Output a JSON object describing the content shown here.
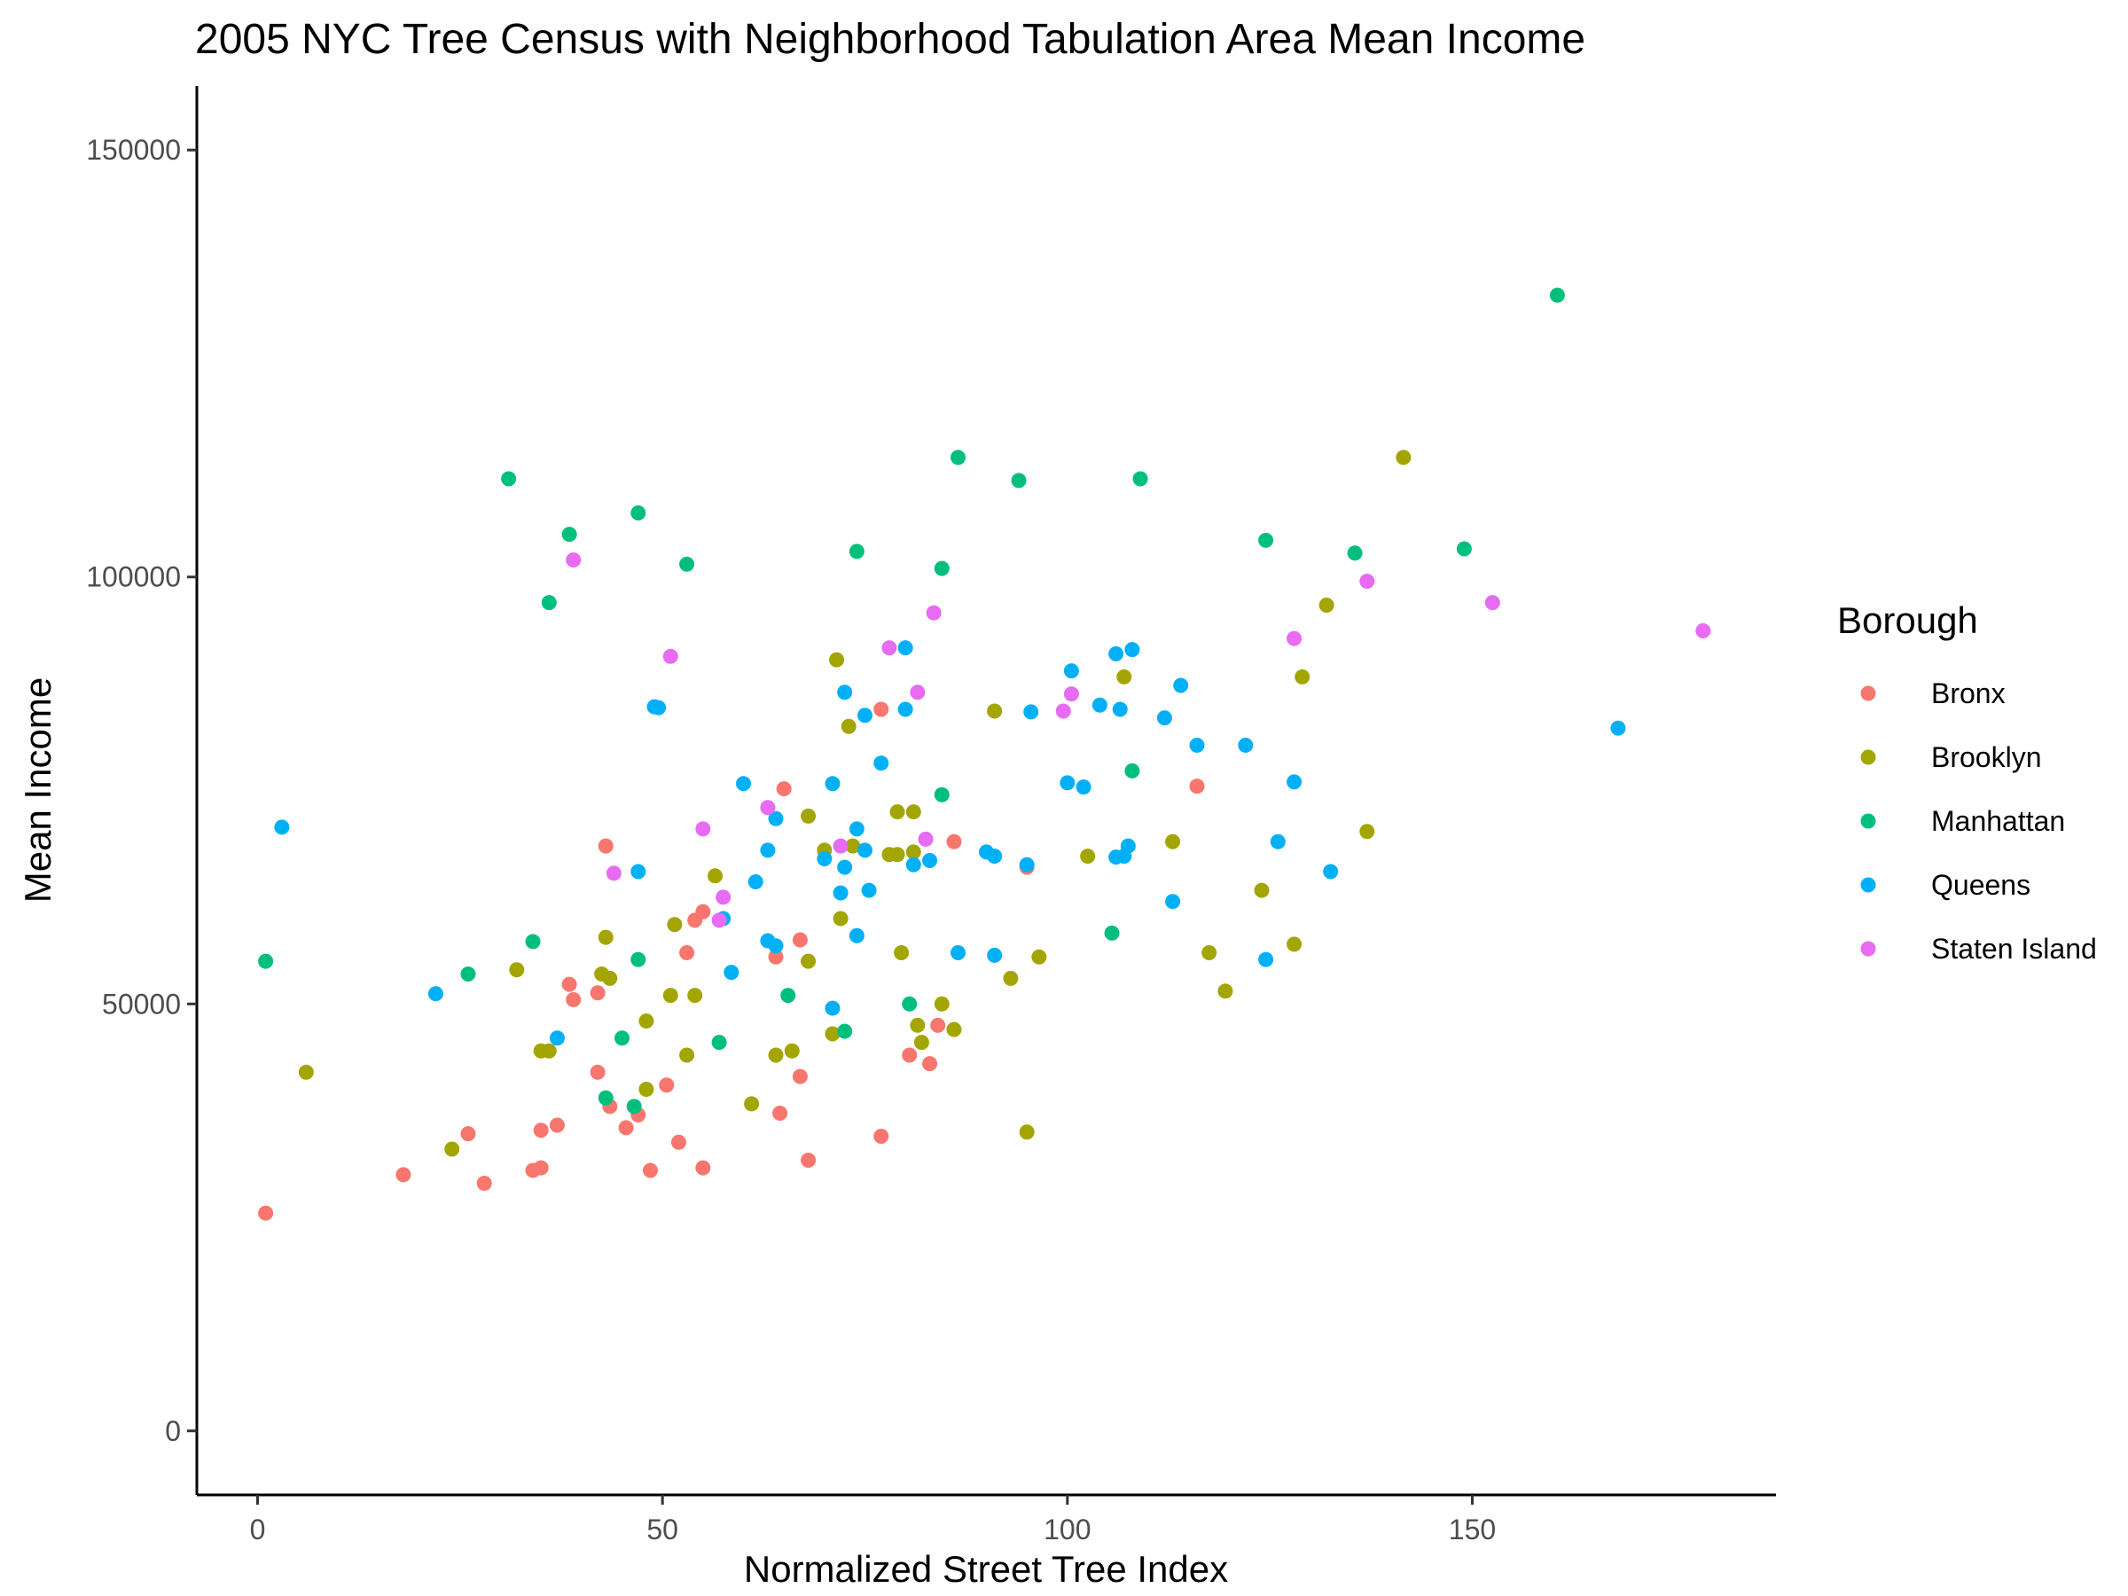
{
  "chart_data": {
    "type": "scatter",
    "title": "2005 NYC Tree Census with Neighborhood Tabulation Area Mean Income",
    "xlabel": "Normalized Street Tree Index",
    "ylabel": "Mean Income",
    "xlim": [
      -7.5,
      187.5
    ],
    "ylim": [
      -7500,
      157500
    ],
    "x_ticks": [
      0,
      50,
      100,
      150
    ],
    "y_ticks": [
      0,
      50000,
      100000,
      150000
    ],
    "grid": false,
    "legend_title": "Borough",
    "legend_position": "right",
    "series": [
      {
        "name": "Bronx",
        "color": "#F8766D",
        "points": [
          [
            1,
            25500
          ],
          [
            18,
            30000
          ],
          [
            26,
            34800
          ],
          [
            28,
            29000
          ],
          [
            34,
            30500
          ],
          [
            35,
            35200
          ],
          [
            35,
            30800
          ],
          [
            37,
            35800
          ],
          [
            38.5,
            52300
          ],
          [
            39,
            50500
          ],
          [
            42,
            42000
          ],
          [
            42,
            51300
          ],
          [
            43,
            68500
          ],
          [
            43.5,
            38000
          ],
          [
            45.5,
            35500
          ],
          [
            47,
            37000
          ],
          [
            48.5,
            30500
          ],
          [
            50.5,
            40500
          ],
          [
            52,
            33800
          ],
          [
            53,
            56000
          ],
          [
            54,
            59800
          ],
          [
            55,
            60800
          ],
          [
            55,
            30800
          ],
          [
            64,
            55500
          ],
          [
            64.5,
            37200
          ],
          [
            65,
            75200
          ],
          [
            67,
            57500
          ],
          [
            67,
            41500
          ],
          [
            68,
            31700
          ],
          [
            77,
            84500
          ],
          [
            77,
            34500
          ],
          [
            80.5,
            44000
          ],
          [
            83,
            43000
          ],
          [
            84,
            47500
          ],
          [
            86,
            69000
          ],
          [
            95,
            66000
          ],
          [
            116,
            75500
          ]
        ]
      },
      {
        "name": "Brooklyn",
        "color": "#A3A500",
        "points": [
          [
            6,
            42000
          ],
          [
            24,
            33000
          ],
          [
            32,
            54000
          ],
          [
            35,
            44500
          ],
          [
            36,
            44500
          ],
          [
            42.5,
            53500
          ],
          [
            43,
            57800
          ],
          [
            43.5,
            53000
          ],
          [
            48,
            48000
          ],
          [
            48,
            40000
          ],
          [
            51,
            51000
          ],
          [
            51.5,
            59300
          ],
          [
            53,
            44000
          ],
          [
            54,
            51000
          ],
          [
            56.5,
            65000
          ],
          [
            61,
            38300
          ],
          [
            64,
            44000
          ],
          [
            66,
            44500
          ],
          [
            68,
            55000
          ],
          [
            68,
            72000
          ],
          [
            70,
            68000
          ],
          [
            71,
            46500
          ],
          [
            71.5,
            90300
          ],
          [
            72,
            60000
          ],
          [
            73,
            82500
          ],
          [
            73.5,
            68500
          ],
          [
            78,
            67500
          ],
          [
            79,
            72500
          ],
          [
            79,
            67500
          ],
          [
            79.5,
            56000
          ],
          [
            81,
            67800
          ],
          [
            81,
            72500
          ],
          [
            81.5,
            47500
          ],
          [
            82,
            45500
          ],
          [
            84.5,
            50000
          ],
          [
            86,
            47000
          ],
          [
            91,
            84300
          ],
          [
            93,
            53000
          ],
          [
            95,
            35000
          ],
          [
            96.5,
            55500
          ],
          [
            102.5,
            67300
          ],
          [
            107,
            88300
          ],
          [
            113,
            69000
          ],
          [
            117.5,
            56000
          ],
          [
            119.5,
            51500
          ],
          [
            124,
            63300
          ],
          [
            128,
            57000
          ],
          [
            129,
            88300
          ],
          [
            132,
            96700
          ],
          [
            137,
            70200
          ],
          [
            141.5,
            114000
          ]
        ]
      },
      {
        "name": "Manhattan",
        "color": "#00BF7D",
        "points": [
          [
            1,
            55000
          ],
          [
            26,
            53500
          ],
          [
            31,
            111500
          ],
          [
            34,
            57300
          ],
          [
            36,
            97000
          ],
          [
            38.5,
            105000
          ],
          [
            43,
            39000
          ],
          [
            45,
            46000
          ],
          [
            46.5,
            38000
          ],
          [
            47,
            107500
          ],
          [
            47,
            55200
          ],
          [
            53,
            101500
          ],
          [
            57,
            45500
          ],
          [
            65.5,
            51000
          ],
          [
            72.5,
            46800
          ],
          [
            74,
            103000
          ],
          [
            80.5,
            50000
          ],
          [
            84.5,
            74500
          ],
          [
            84.5,
            101000
          ],
          [
            86.5,
            114000
          ],
          [
            94,
            111300
          ],
          [
            105.5,
            58300
          ],
          [
            108,
            77300
          ],
          [
            109,
            111500
          ],
          [
            124.5,
            104300
          ],
          [
            135.5,
            102800
          ],
          [
            149,
            103300
          ],
          [
            160.5,
            133000
          ]
        ]
      },
      {
        "name": "Queens",
        "color": "#00B0F6",
        "points": [
          [
            3,
            70700
          ],
          [
            22,
            51200
          ],
          [
            37,
            46000
          ],
          [
            47,
            65500
          ],
          [
            49,
            84800
          ],
          [
            49.5,
            84700
          ],
          [
            57.5,
            60000
          ],
          [
            58.5,
            53700
          ],
          [
            60,
            75800
          ],
          [
            61.5,
            64300
          ],
          [
            63,
            57400
          ],
          [
            63,
            68000
          ],
          [
            64,
            56800
          ],
          [
            64,
            71700
          ],
          [
            70,
            67000
          ],
          [
            71,
            49500
          ],
          [
            71,
            75800
          ],
          [
            72,
            63000
          ],
          [
            72.5,
            66000
          ],
          [
            72.5,
            86500
          ],
          [
            74,
            70500
          ],
          [
            74,
            58000
          ],
          [
            75,
            68000
          ],
          [
            75,
            83800
          ],
          [
            75.5,
            63300
          ],
          [
            77,
            78200
          ],
          [
            80,
            91700
          ],
          [
            80,
            84500
          ],
          [
            81,
            66300
          ],
          [
            83,
            66800
          ],
          [
            86.5,
            56000
          ],
          [
            90,
            67800
          ],
          [
            91,
            67300
          ],
          [
            91,
            55700
          ],
          [
            95,
            66300
          ],
          [
            95.5,
            84200
          ],
          [
            100,
            75900
          ],
          [
            100.5,
            89000
          ],
          [
            102,
            75400
          ],
          [
            104,
            85000
          ],
          [
            106,
            67200
          ],
          [
            106,
            91000
          ],
          [
            106.5,
            84500
          ],
          [
            107,
            67300
          ],
          [
            107.5,
            68500
          ],
          [
            108,
            91500
          ],
          [
            112,
            83500
          ],
          [
            113,
            62000
          ],
          [
            114,
            87300
          ],
          [
            116,
            80300
          ],
          [
            122,
            80300
          ],
          [
            124.5,
            55200
          ],
          [
            126,
            69000
          ],
          [
            128,
            76000
          ],
          [
            132.5,
            65500
          ],
          [
            168,
            82300
          ]
        ]
      },
      {
        "name": "Staten Island",
        "color": "#E76BF3",
        "points": [
          [
            39,
            102000
          ],
          [
            44,
            65300
          ],
          [
            51,
            90700
          ],
          [
            55,
            70500
          ],
          [
            57,
            59800
          ],
          [
            57.5,
            62500
          ],
          [
            63,
            73000
          ],
          [
            72,
            68500
          ],
          [
            78,
            91700
          ],
          [
            81.5,
            86500
          ],
          [
            82.5,
            69300
          ],
          [
            83.5,
            95800
          ],
          [
            99.5,
            84300
          ],
          [
            100.5,
            86300
          ],
          [
            128,
            92800
          ],
          [
            137,
            99500
          ],
          [
            152.5,
            97000
          ],
          [
            178.5,
            93700
          ]
        ]
      }
    ]
  }
}
